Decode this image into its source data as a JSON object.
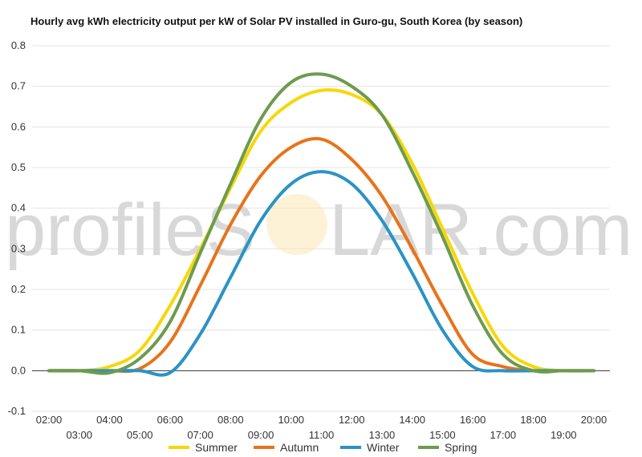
{
  "chart_data": {
    "type": "line",
    "title": "Hourly avg kWh electricity output per kW of Solar PV installed in Guro-gu, South Korea (by season)",
    "watermark": {
      "left": "profileS",
      "right": "LAR.com",
      "sun_color": "#fce6b4"
    },
    "x": [
      "02:00",
      "03:00",
      "04:00",
      "05:00",
      "06:00",
      "07:00",
      "08:00",
      "09:00",
      "10:00",
      "11:00",
      "12:00",
      "13:00",
      "14:00",
      "15:00",
      "16:00",
      "17:00",
      "18:00",
      "19:00",
      "20:00"
    ],
    "ylim": [
      -0.1,
      0.8
    ],
    "yticks": [
      "-0.1",
      "0.0",
      "0.1",
      "0.2",
      "0.3",
      "0.4",
      "0.5",
      "0.6",
      "0.7",
      "0.8"
    ],
    "grid": true,
    "legend_position": "bottom",
    "series": [
      {
        "name": "Summer",
        "color": "#f7d708",
        "values": [
          0,
          0,
          0.01,
          0.05,
          0.16,
          0.3,
          0.45,
          0.59,
          0.66,
          0.69,
          0.68,
          0.63,
          0.51,
          0.35,
          0.19,
          0.06,
          0.01,
          0,
          0
        ]
      },
      {
        "name": "Autumn",
        "color": "#e8731a",
        "values": [
          0,
          0,
          0,
          0.005,
          0.07,
          0.21,
          0.36,
          0.48,
          0.55,
          0.57,
          0.52,
          0.43,
          0.3,
          0.16,
          0.04,
          0.01,
          0,
          0,
          0
        ]
      },
      {
        "name": "Winter",
        "color": "#2a93c4",
        "values": [
          0,
          0,
          0,
          0,
          -0.005,
          0.09,
          0.23,
          0.37,
          0.46,
          0.49,
          0.46,
          0.37,
          0.24,
          0.1,
          0.01,
          0,
          0,
          0,
          0
        ]
      },
      {
        "name": "Spring",
        "color": "#6d9b4e",
        "values": [
          0,
          0,
          -0.005,
          0.03,
          0.12,
          0.29,
          0.46,
          0.62,
          0.71,
          0.73,
          0.7,
          0.63,
          0.49,
          0.33,
          0.16,
          0.04,
          0,
          0,
          0
        ]
      }
    ]
  }
}
